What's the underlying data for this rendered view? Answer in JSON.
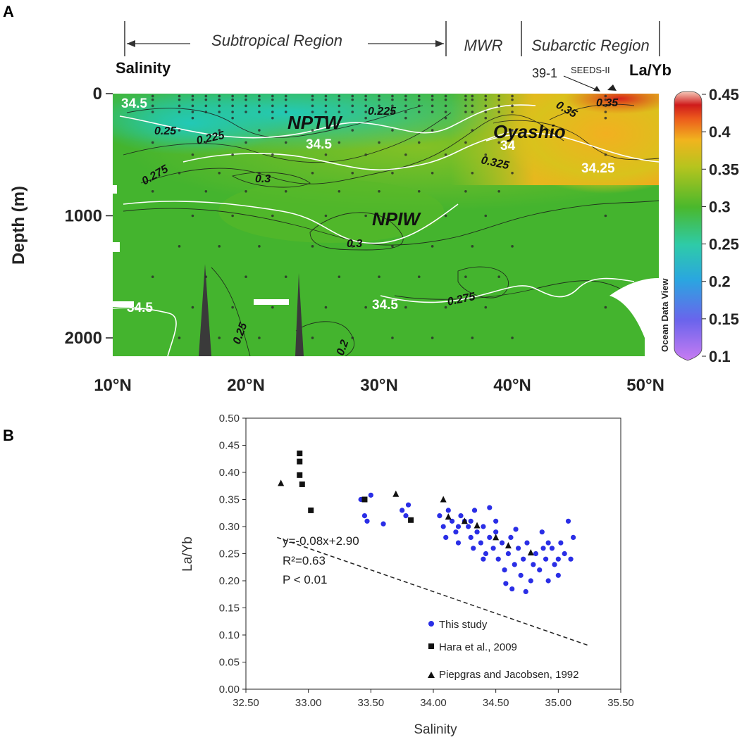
{
  "panel_a": {
    "letter": "A",
    "regions": {
      "subtropical": "Subtropical Region",
      "mwr": "MWR",
      "subarctic": "Subarctic Region"
    },
    "left_label": "Salinity",
    "right_label": "La/Yb",
    "station_label": "39-1",
    "cruise_label": "SEEDS-II",
    "water_masses": {
      "nptw": "NPTW",
      "npiw": "NPIW",
      "oyashio": "Oyashio"
    },
    "contour_labels": [
      "34.5",
      "0.25",
      "0.225",
      "0.225",
      "34.5",
      "0.275",
      "0.3",
      "34",
      "0.325",
      "0.35",
      "0.35",
      "34.25",
      "0.3",
      "34.5",
      "0.275",
      "34.5",
      "0.25",
      "0.2"
    ],
    "colorbar_title": "Ocean Data View",
    "colorbar_ticks": [
      "0.45",
      "0.4",
      "0.35",
      "0.3",
      "0.25",
      "0.2",
      "0.15",
      "0.1"
    ],
    "colors": {
      "nptw": "#22c7b0",
      "mid": "#49b82e",
      "oyashio": "#f0b422",
      "surface_max": "#d6241c"
    }
  },
  "panel_b": {
    "letter": "B"
  },
  "chart_data": [
    {
      "type": "heatmap",
      "panel": "A",
      "title": "",
      "xlabel": "",
      "ylabel": "Depth (m)",
      "x_ticks": [
        "10°N",
        "20°N",
        "30°N",
        "40°N",
        "50°N"
      ],
      "y_ticks": [
        "0",
        "1000",
        "2000"
      ],
      "xlim": [
        10,
        51
      ],
      "ylim": [
        0,
        2150
      ],
      "colorbar_range": [
        0.1,
        0.45
      ],
      "variable": "La/Yb"
    },
    {
      "type": "scatter",
      "panel": "B",
      "xlabel": "Salinity",
      "ylabel": "La/Yb",
      "xlim": [
        32.5,
        35.5
      ],
      "ylim": [
        0,
        0.5
      ],
      "x_ticks": [
        "32.50",
        "33.00",
        "33.50",
        "34.00",
        "34.50",
        "35.00",
        "35.50"
      ],
      "y_ticks": [
        "0.00",
        "0.05",
        "0.10",
        "0.15",
        "0.20",
        "0.25",
        "0.30",
        "0.35",
        "0.40",
        "0.45",
        "0.50"
      ],
      "equation": "y=-0.08x+2.90",
      "r_squared": "R²=0.63",
      "p_value": "P < 0.01",
      "trendline": {
        "slope": -0.08,
        "intercept": 2.9,
        "x_range": [
          32.75,
          35.25
        ]
      },
      "series": [
        {
          "name": "This study",
          "marker": "circle",
          "color": "#2a2ee6",
          "points": [
            [
              33.42,
              0.35
            ],
            [
              33.45,
              0.32
            ],
            [
              33.5,
              0.358
            ],
            [
              33.47,
              0.31
            ],
            [
              33.6,
              0.305
            ],
            [
              33.75,
              0.33
            ],
            [
              33.78,
              0.32
            ],
            [
              33.8,
              0.34
            ],
            [
              34.05,
              0.32
            ],
            [
              34.08,
              0.3
            ],
            [
              34.1,
              0.28
            ],
            [
              34.12,
              0.33
            ],
            [
              34.15,
              0.31
            ],
            [
              34.18,
              0.29
            ],
            [
              34.2,
              0.27
            ],
            [
              34.22,
              0.32
            ],
            [
              34.25,
              0.31
            ],
            [
              34.28,
              0.3
            ],
            [
              34.3,
              0.28
            ],
            [
              34.32,
              0.26
            ],
            [
              34.33,
              0.33
            ],
            [
              34.35,
              0.29
            ],
            [
              34.38,
              0.27
            ],
            [
              34.4,
              0.3
            ],
            [
              34.42,
              0.25
            ],
            [
              34.45,
              0.28
            ],
            [
              34.45,
              0.335
            ],
            [
              34.48,
              0.26
            ],
            [
              34.5,
              0.29
            ],
            [
              34.52,
              0.24
            ],
            [
              34.55,
              0.27
            ],
            [
              34.57,
              0.22
            ],
            [
              34.6,
              0.25
            ],
            [
              34.62,
              0.28
            ],
            [
              34.63,
              0.185
            ],
            [
              34.65,
              0.23
            ],
            [
              34.68,
              0.26
            ],
            [
              34.7,
              0.21
            ],
            [
              34.72,
              0.24
            ],
            [
              34.75,
              0.27
            ],
            [
              34.78,
              0.2
            ],
            [
              34.8,
              0.23
            ],
            [
              34.82,
              0.25
            ],
            [
              34.85,
              0.22
            ],
            [
              34.87,
              0.29
            ],
            [
              34.9,
              0.24
            ],
            [
              34.92,
              0.2
            ],
            [
              34.95,
              0.26
            ],
            [
              34.97,
              0.23
            ],
            [
              35.0,
              0.21
            ],
            [
              35.02,
              0.27
            ],
            [
              35.05,
              0.25
            ],
            [
              35.08,
              0.31
            ],
            [
              35.1,
              0.24
            ],
            [
              35.12,
              0.28
            ],
            [
              34.58,
              0.195
            ],
            [
              34.74,
              0.18
            ],
            [
              34.88,
              0.26
            ],
            [
              34.66,
              0.295
            ],
            [
              34.4,
              0.24
            ],
            [
              34.2,
              0.3
            ],
            [
              34.5,
              0.31
            ],
            [
              34.3,
              0.31
            ],
            [
              34.92,
              0.27
            ],
            [
              35.0,
              0.24
            ]
          ]
        },
        {
          "name": "Hara et al., 2009",
          "marker": "square",
          "color": "#111111",
          "points": [
            [
              32.93,
              0.435
            ],
            [
              32.93,
              0.42
            ],
            [
              32.93,
              0.395
            ],
            [
              32.95,
              0.378
            ],
            [
              33.02,
              0.33
            ],
            [
              33.45,
              0.35
            ],
            [
              33.82,
              0.312
            ]
          ]
        },
        {
          "name": "Piepgras and Jacobsen, 1992",
          "marker": "triangle",
          "color": "#111111",
          "points": [
            [
              32.78,
              0.38
            ],
            [
              33.7,
              0.36
            ],
            [
              34.08,
              0.35
            ],
            [
              34.12,
              0.318
            ],
            [
              34.25,
              0.31
            ],
            [
              34.35,
              0.302
            ],
            [
              34.5,
              0.28
            ],
            [
              34.6,
              0.265
            ],
            [
              34.78,
              0.252
            ]
          ]
        }
      ]
    }
  ]
}
